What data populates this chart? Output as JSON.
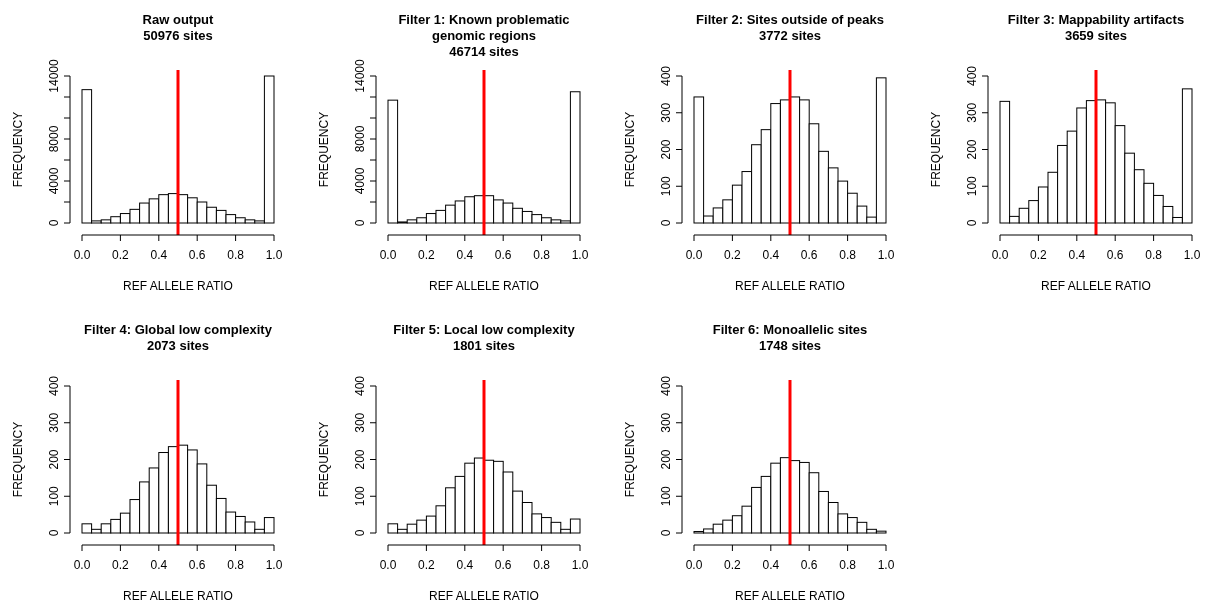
{
  "chart_data": [
    {
      "type": "histogram",
      "title": "Raw output",
      "subtitle": "50976 sites",
      "xlabel": "REF ALLELE RATIO",
      "ylabel": "FREQUENCY",
      "color": "#ffffff",
      "bins": [
        0,
        0.05,
        0.1,
        0.15,
        0.2,
        0.25,
        0.3,
        0.35,
        0.4,
        0.45,
        0.5,
        0.55,
        0.6,
        0.65,
        0.7,
        0.75,
        0.8,
        0.85,
        0.9,
        0.95,
        1
      ],
      "values": [
        12700,
        200,
        300,
        600,
        900,
        1300,
        1900,
        2300,
        2700,
        2800,
        2700,
        2400,
        2000,
        1500,
        1200,
        800,
        500,
        300,
        200,
        14000
      ],
      "xlim": [
        0,
        1
      ],
      "xticks": [
        {
          "value": 0,
          "label": "0.0"
        },
        {
          "value": 0.2,
          "label": "0.2"
        },
        {
          "value": 0.4,
          "label": "0.4"
        },
        {
          "value": 0.6,
          "label": "0.6"
        },
        {
          "value": 0.8,
          "label": "0.8"
        },
        {
          "value": 1,
          "label": "1.0"
        }
      ],
      "ylim": [
        0,
        14000
      ],
      "yticks": [
        0,
        {
          "value": 2000,
          "label": null
        },
        4000,
        {
          "value": 6000,
          "label": null
        },
        8000,
        {
          "value": 10000,
          "label": null
        },
        {
          "value": 12000,
          "label": null
        },
        14000
      ],
      "ref_lines": [
        {
          "axis": "x",
          "value": 0.5,
          "color": "#ff0000"
        }
      ]
    },
    {
      "type": "histogram",
      "title": "Filter 1: Known problematic genomic regions",
      "subtitle": "46714 sites",
      "xlabel": "REF ALLELE RATIO",
      "ylabel": "FREQUENCY",
      "color": "#ffffff",
      "bins": [
        0,
        0.05,
        0.1,
        0.15,
        0.2,
        0.25,
        0.3,
        0.35,
        0.4,
        0.45,
        0.5,
        0.55,
        0.6,
        0.65,
        0.7,
        0.75,
        0.8,
        0.85,
        0.9,
        0.95,
        1
      ],
      "values": [
        11700,
        100,
        300,
        500,
        900,
        1200,
        1700,
        2100,
        2500,
        2600,
        2600,
        2200,
        1900,
        1400,
        1100,
        800,
        500,
        300,
        200,
        12500
      ],
      "xlim": [
        0,
        1
      ],
      "xticks": [
        {
          "value": 0,
          "label": "0.0"
        },
        {
          "value": 0.2,
          "label": "0.2"
        },
        {
          "value": 0.4,
          "label": "0.4"
        },
        {
          "value": 0.6,
          "label": "0.6"
        },
        {
          "value": 0.8,
          "label": "0.8"
        },
        {
          "value": 1,
          "label": "1.0"
        }
      ],
      "ylim": [
        0,
        14000
      ],
      "yticks": [
        0,
        {
          "value": 2000,
          "label": null
        },
        4000,
        {
          "value": 6000,
          "label": null
        },
        8000,
        {
          "value": 10000,
          "label": null
        },
        {
          "value": 12000,
          "label": null
        },
        14000
      ],
      "ref_lines": [
        {
          "axis": "x",
          "value": 0.5,
          "color": "#ff0000"
        }
      ]
    },
    {
      "type": "histogram",
      "title": "Filter 2: Sites outside of peaks",
      "subtitle": "3772 sites",
      "xlabel": "REF ALLELE RATIO",
      "ylabel": "FREQUENCY",
      "color": "#ffffff",
      "bins": [
        0,
        0.05,
        0.1,
        0.15,
        0.2,
        0.25,
        0.3,
        0.35,
        0.4,
        0.45,
        0.5,
        0.55,
        0.6,
        0.65,
        0.7,
        0.75,
        0.8,
        0.85,
        0.9,
        0.95,
        1
      ],
      "values": [
        343,
        19,
        41,
        63,
        103,
        140,
        213,
        254,
        325,
        335,
        343,
        335,
        270,
        195,
        150,
        114,
        81,
        46,
        16,
        395
      ],
      "xlim": [
        0,
        1
      ],
      "xticks": [
        {
          "value": 0,
          "label": "0.0"
        },
        {
          "value": 0.2,
          "label": "0.2"
        },
        {
          "value": 0.4,
          "label": "0.4"
        },
        {
          "value": 0.6,
          "label": "0.6"
        },
        {
          "value": 0.8,
          "label": "0.8"
        },
        {
          "value": 1,
          "label": "1.0"
        }
      ],
      "ylim": [
        0,
        400
      ],
      "yticks": [
        0,
        100,
        200,
        300,
        400
      ],
      "ref_lines": [
        {
          "axis": "x",
          "value": 0.5,
          "color": "#ff0000"
        }
      ]
    },
    {
      "type": "histogram",
      "title": "Filter 3: Mappability artifacts",
      "subtitle": "3659 sites",
      "xlabel": "REF ALLELE RATIO",
      "ylabel": "FREQUENCY",
      "color": "#ffffff",
      "bins": [
        0,
        0.05,
        0.1,
        0.15,
        0.2,
        0.25,
        0.3,
        0.35,
        0.4,
        0.45,
        0.5,
        0.55,
        0.6,
        0.65,
        0.7,
        0.75,
        0.8,
        0.85,
        0.9,
        0.95,
        1
      ],
      "values": [
        331,
        18,
        40,
        61,
        98,
        138,
        211,
        250,
        313,
        333,
        335,
        327,
        265,
        190,
        145,
        108,
        75,
        45,
        15,
        365
      ],
      "xlim": [
        0,
        1
      ],
      "xticks": [
        {
          "value": 0,
          "label": "0.0"
        },
        {
          "value": 0.2,
          "label": "0.2"
        },
        {
          "value": 0.4,
          "label": "0.4"
        },
        {
          "value": 0.6,
          "label": "0.6"
        },
        {
          "value": 0.8,
          "label": "0.8"
        },
        {
          "value": 1,
          "label": "1.0"
        }
      ],
      "ylim": [
        0,
        400
      ],
      "yticks": [
        0,
        100,
        200,
        300,
        400
      ],
      "ref_lines": [
        {
          "axis": "x",
          "value": 0.5,
          "color": "#ff0000"
        }
      ]
    },
    {
      "type": "histogram",
      "title": "Filter 4: Global low complexity",
      "subtitle": "2073 sites",
      "xlabel": "REF ALLELE RATIO",
      "ylabel": "FREQUENCY",
      "color": "#ffffff",
      "bins": [
        0,
        0.05,
        0.1,
        0.15,
        0.2,
        0.25,
        0.3,
        0.35,
        0.4,
        0.45,
        0.5,
        0.55,
        0.6,
        0.65,
        0.7,
        0.75,
        0.8,
        0.85,
        0.9,
        0.95,
        1
      ],
      "values": [
        25,
        10,
        25,
        37,
        54,
        91,
        139,
        177,
        219,
        235,
        239,
        226,
        188,
        130,
        94,
        57,
        45,
        30,
        10,
        42
      ],
      "xlim": [
        0,
        1
      ],
      "xticks": [
        {
          "value": 0,
          "label": "0.0"
        },
        {
          "value": 0.2,
          "label": "0.2"
        },
        {
          "value": 0.4,
          "label": "0.4"
        },
        {
          "value": 0.6,
          "label": "0.6"
        },
        {
          "value": 0.8,
          "label": "0.8"
        },
        {
          "value": 1,
          "label": "1.0"
        }
      ],
      "ylim": [
        0,
        400
      ],
      "yticks": [
        0,
        100,
        200,
        300,
        400
      ],
      "ref_lines": [
        {
          "axis": "x",
          "value": 0.5,
          "color": "#ff0000"
        }
      ]
    },
    {
      "type": "histogram",
      "title": "Filter 5: Local low complexity",
      "subtitle": "1801 sites",
      "xlabel": "REF ALLELE RATIO",
      "ylabel": "FREQUENCY",
      "color": "#ffffff",
      "bins": [
        0,
        0.05,
        0.1,
        0.15,
        0.2,
        0.25,
        0.3,
        0.35,
        0.4,
        0.45,
        0.5,
        0.55,
        0.6,
        0.65,
        0.7,
        0.75,
        0.8,
        0.85,
        0.9,
        0.95,
        1
      ],
      "values": [
        25,
        10,
        24,
        35,
        46,
        74,
        123,
        154,
        190,
        204,
        198,
        195,
        166,
        114,
        83,
        52,
        42,
        29,
        10,
        38
      ],
      "xlim": [
        0,
        1
      ],
      "xticks": [
        {
          "value": 0,
          "label": "0.0"
        },
        {
          "value": 0.2,
          "label": "0.2"
        },
        {
          "value": 0.4,
          "label": "0.4"
        },
        {
          "value": 0.6,
          "label": "0.6"
        },
        {
          "value": 0.8,
          "label": "0.8"
        },
        {
          "value": 1,
          "label": "1.0"
        }
      ],
      "ylim": [
        0,
        400
      ],
      "yticks": [
        0,
        100,
        200,
        300,
        400
      ],
      "ref_lines": [
        {
          "axis": "x",
          "value": 0.5,
          "color": "#ff0000"
        }
      ]
    },
    {
      "type": "histogram",
      "title": "Filter 6: Monoallelic sites",
      "subtitle": "1748 sites",
      "xlabel": "REF ALLELE RATIO",
      "ylabel": "FREQUENCY",
      "color": "#ffffff",
      "bins": [
        0,
        0.05,
        0.1,
        0.15,
        0.2,
        0.25,
        0.3,
        0.35,
        0.4,
        0.45,
        0.5,
        0.55,
        0.6,
        0.65,
        0.7,
        0.75,
        0.8,
        0.85,
        0.9,
        0.95,
        1
      ],
      "values": [
        4,
        11,
        24,
        35,
        47,
        73,
        124,
        154,
        190,
        205,
        197,
        192,
        164,
        113,
        83,
        52,
        42,
        29,
        10,
        5
      ],
      "xlim": [
        0,
        1
      ],
      "xticks": [
        {
          "value": 0,
          "label": "0.0"
        },
        {
          "value": 0.2,
          "label": "0.2"
        },
        {
          "value": 0.4,
          "label": "0.4"
        },
        {
          "value": 0.6,
          "label": "0.6"
        },
        {
          "value": 0.8,
          "label": "0.8"
        },
        {
          "value": 1,
          "label": "1.0"
        }
      ],
      "ylim": [
        0,
        400
      ],
      "yticks": [
        0,
        100,
        200,
        300,
        400
      ],
      "ref_lines": [
        {
          "axis": "x",
          "value": 0.5,
          "color": "#ff0000"
        }
      ]
    }
  ]
}
